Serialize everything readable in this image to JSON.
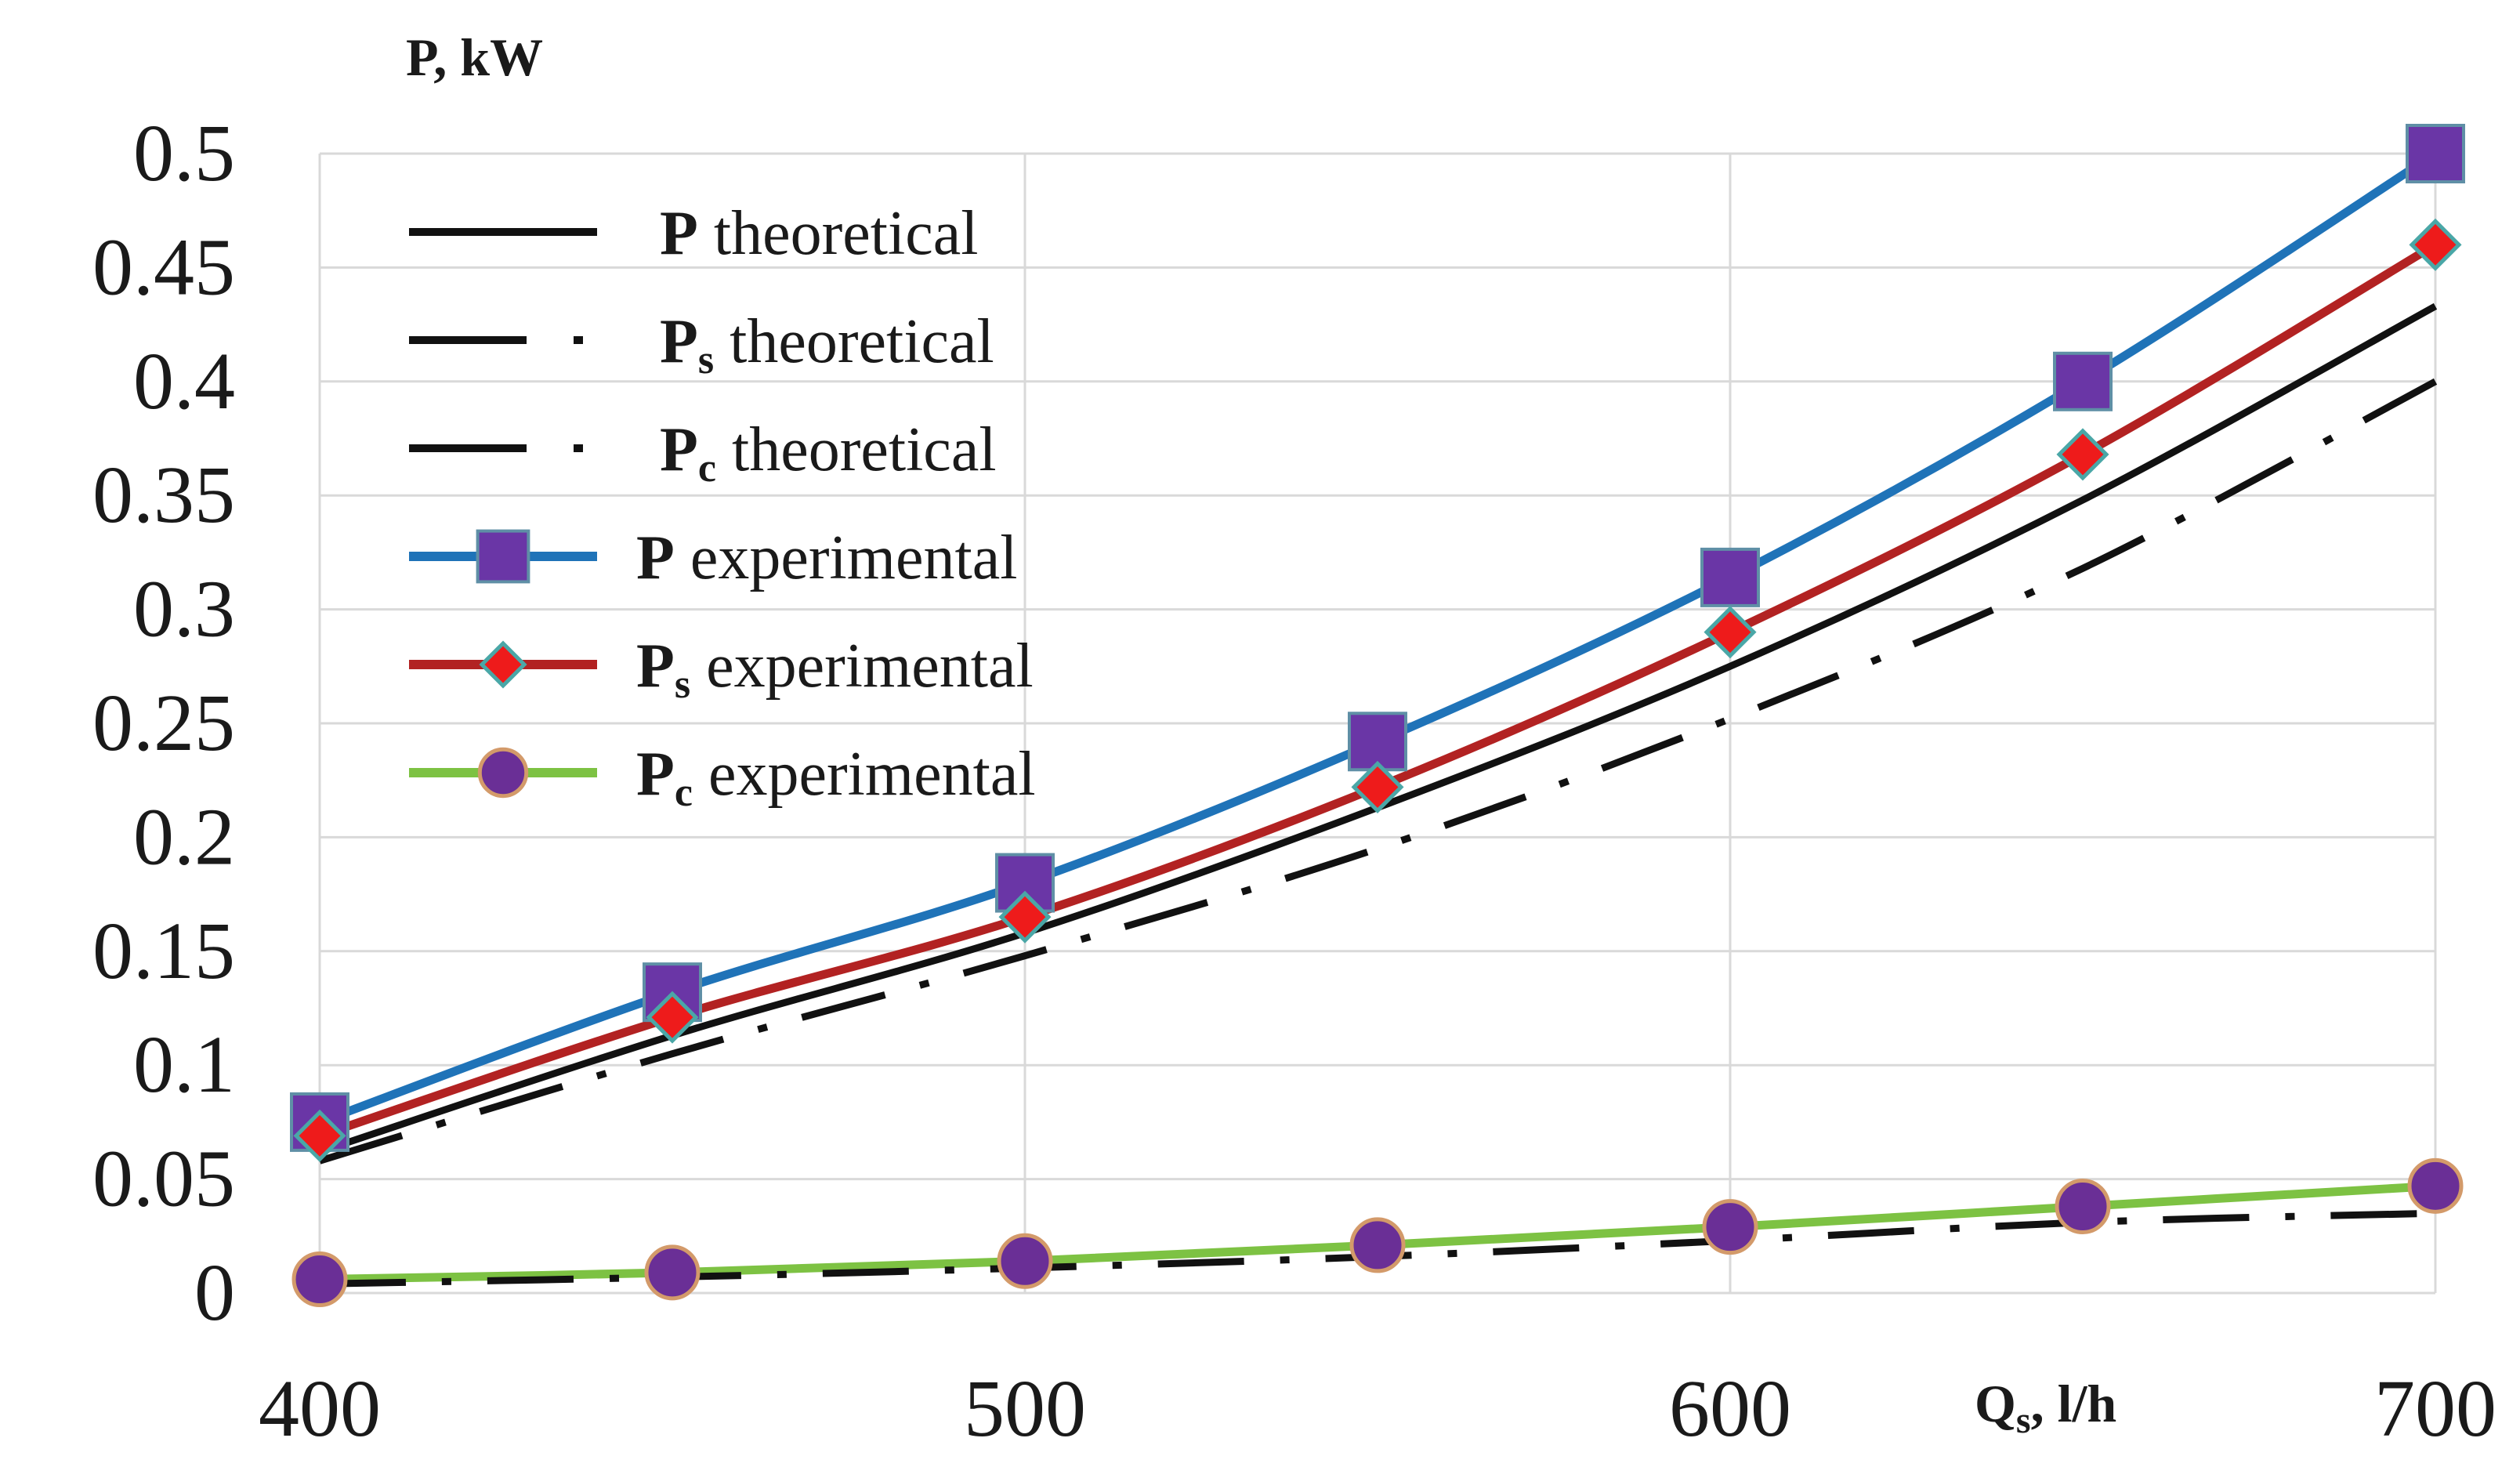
{
  "chart_data": {
    "type": "line",
    "title": "",
    "ylabel": "P, kW",
    "xlabel": "Qs, l/h",
    "xlim": [
      400,
      700
    ],
    "ylim": [
      0,
      0.5
    ],
    "grid": true,
    "legend_position": "top-left",
    "x_ticks": [
      400,
      500,
      600,
      700
    ],
    "x_tick_labels": [
      "400",
      "500",
      "600",
      "700"
    ],
    "y_ticks": [
      0,
      0.05,
      0.1,
      0.15,
      0.2,
      0.25,
      0.3,
      0.35,
      0.4,
      0.45,
      0.5
    ],
    "y_tick_labels": [
      "0",
      "0.05",
      "0.1",
      "0.15",
      "0.2",
      "0.25",
      "0.3",
      "0.35",
      "0.4",
      "0.45",
      "0.5"
    ],
    "x": [
      400,
      450,
      500,
      550,
      600,
      650,
      700
    ],
    "series": [
      {
        "name": "P theoretical",
        "symbol": "P",
        "subscript": "",
        "suffix": " theoretical",
        "color": "#111111",
        "style": "solid",
        "marker": "none",
        "values": [
          0.062,
          0.113,
          0.158,
          0.213,
          0.275,
          0.348,
          0.433
        ]
      },
      {
        "name": "Ps theoretical",
        "symbol": "P",
        "subscript": "s",
        "suffix": " theoretical",
        "color": "#111111",
        "style": "dashdot",
        "marker": "none",
        "values": [
          0.058,
          0.105,
          0.148,
          0.195,
          0.252,
          0.318,
          0.4
        ]
      },
      {
        "name": "Pc theoretical",
        "symbol": "P",
        "subscript": "c",
        "suffix": " theoretical",
        "color": "#111111",
        "style": "dashdot",
        "marker": "none",
        "values": [
          0.004,
          0.007,
          0.011,
          0.016,
          0.023,
          0.031,
          0.035
        ]
      },
      {
        "name": "P experimental",
        "symbol": "P",
        "subscript": "",
        "suffix": " experimental",
        "color": "#1f73b8",
        "style": "solid",
        "marker": "square",
        "marker_color": "#6a36a6",
        "values": [
          0.075,
          0.132,
          0.18,
          0.242,
          0.314,
          0.4,
          0.5
        ]
      },
      {
        "name": "Ps experimental",
        "symbol": "P",
        "subscript": "s",
        "suffix": " experimental",
        "color": "#b22222",
        "style": "solid",
        "marker": "diamond",
        "marker_color": "#ee1b1b",
        "values": [
          0.069,
          0.121,
          0.165,
          0.222,
          0.29,
          0.368,
          0.46
        ]
      },
      {
        "name": "Pc experimental",
        "symbol": "P",
        "subscript": "c",
        "suffix": " experimental",
        "color": "#7dc243",
        "style": "solid",
        "marker": "circle",
        "marker_color": "#6a2f96",
        "values": [
          0.006,
          0.009,
          0.014,
          0.021,
          0.029,
          0.038,
          0.047
        ]
      }
    ]
  }
}
